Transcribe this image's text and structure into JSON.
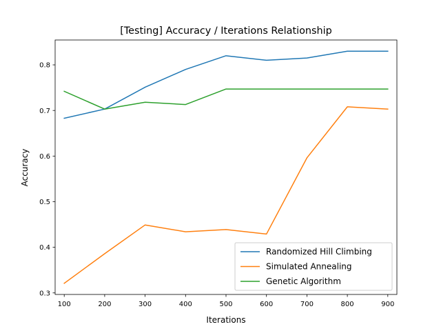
{
  "chart_data": {
    "type": "line",
    "title": "[Testing] Accuracy / Iterations Relationship",
    "xlabel": "Iterations",
    "ylabel": "Accuracy",
    "x": [
      100,
      200,
      300,
      400,
      500,
      600,
      700,
      800,
      900
    ],
    "xlim": [
      77.5,
      922.5
    ],
    "ylim": [
      0.2966,
      0.8545
    ],
    "xticks": [
      100,
      200,
      300,
      400,
      500,
      600,
      700,
      800,
      900
    ],
    "xtick_labels": [
      "100",
      "200",
      "300",
      "400",
      "500",
      "600",
      "700",
      "800",
      "900"
    ],
    "yticks": [
      0.3,
      0.4,
      0.5,
      0.6,
      0.7,
      0.8
    ],
    "ytick_labels": [
      "0.3",
      "0.4",
      "0.5",
      "0.6",
      "0.7",
      "0.8"
    ],
    "grid": false,
    "legend_position": "lower-right",
    "series": [
      {
        "name": "Randomized Hill Climbing",
        "color": "#1f77b4",
        "values": [
          0.683,
          0.703,
          0.751,
          0.79,
          0.82,
          0.81,
          0.815,
          0.83,
          0.83
        ]
      },
      {
        "name": "Simulated Annealing",
        "color": "#ff7f0e",
        "values": [
          0.321,
          0.386,
          0.449,
          0.434,
          0.439,
          0.429,
          0.596,
          0.708,
          0.703
        ]
      },
      {
        "name": "Genetic Algorithm",
        "color": "#2ca02c",
        "values": [
          0.742,
          0.703,
          0.718,
          0.713,
          0.747,
          0.747,
          0.747,
          0.747,
          0.747
        ]
      }
    ]
  }
}
